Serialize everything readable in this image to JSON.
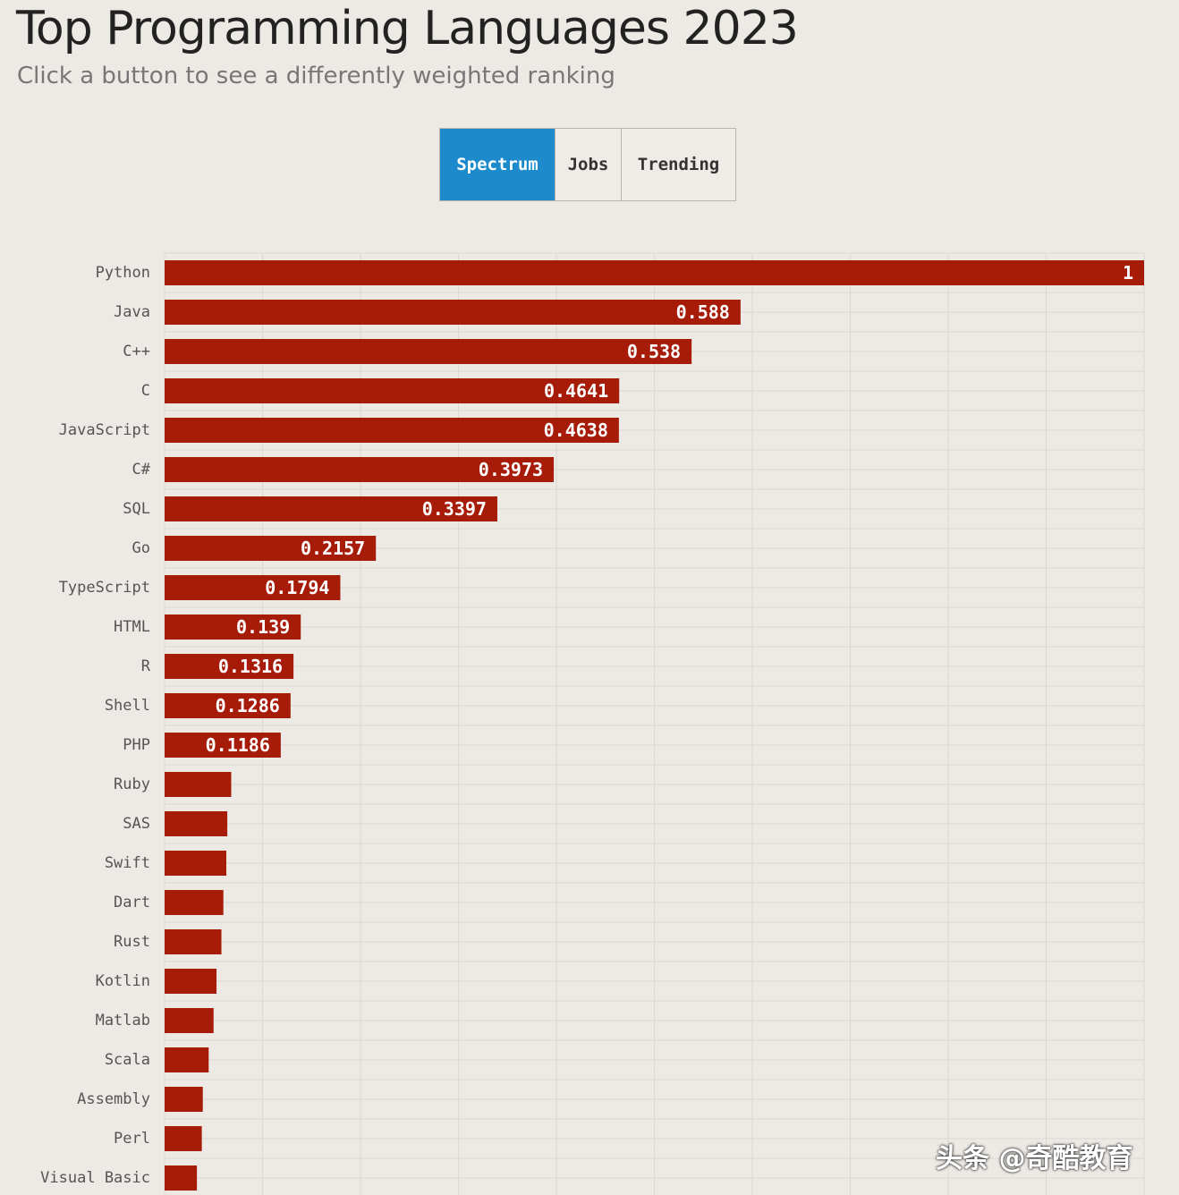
{
  "header": {
    "title": "Top Programming Languages 2023",
    "subtitle": "Click a button to see a differently weighted ranking"
  },
  "toggle": {
    "buttons": [
      "Spectrum",
      "Jobs",
      "Trending"
    ],
    "active": "Spectrum"
  },
  "watermark": "头条 @奇酷教育",
  "colors": {
    "bar": "#a61c09",
    "active_button": "#1d8bcb",
    "background": "#ede9e4",
    "grid": "#dcd8d2"
  },
  "chart_data": {
    "type": "bar",
    "orientation": "horizontal",
    "xlim": [
      0,
      1
    ],
    "grid": true,
    "categories": [
      "Python",
      "Java",
      "C++",
      "C",
      "JavaScript",
      "C#",
      "SQL",
      "Go",
      "TypeScript",
      "HTML",
      "R",
      "Shell",
      "PHP",
      "Ruby",
      "SAS",
      "Swift",
      "Dart",
      "Rust",
      "Kotlin",
      "Matlab",
      "Scala",
      "Assembly",
      "Perl",
      "Visual Basic"
    ],
    "values": [
      1,
      0.588,
      0.538,
      0.4641,
      0.4638,
      0.3973,
      0.3397,
      0.2157,
      0.1794,
      0.139,
      0.1316,
      0.1286,
      0.1186,
      0.068,
      0.064,
      0.063,
      0.06,
      0.058,
      0.053,
      0.05,
      0.045,
      0.039,
      0.038,
      0.033
    ],
    "labels": [
      "1",
      "0.588",
      "0.538",
      "0.4641",
      "0.4638",
      "0.3973",
      "0.3397",
      "0.2157",
      "0.1794",
      "0.139",
      "0.1316",
      "0.1286",
      "0.1186",
      "",
      "",
      "",
      "",
      "",
      "",
      "",
      "",
      "",
      "",
      ""
    ]
  }
}
